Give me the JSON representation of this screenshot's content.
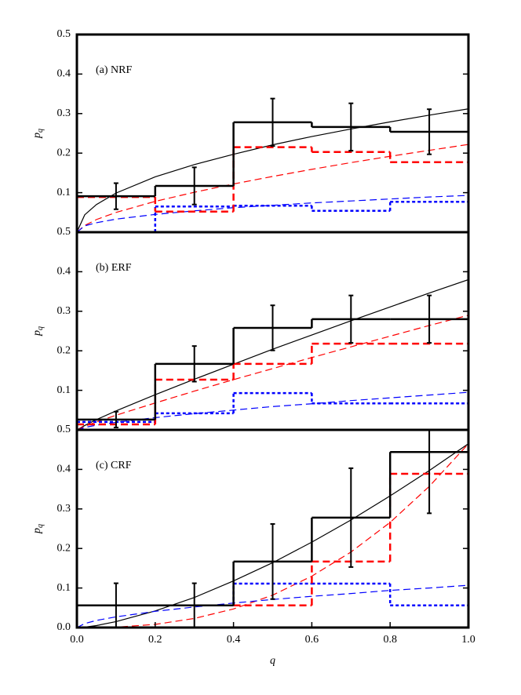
{
  "chart_data": [
    {
      "type": "histogram",
      "label": "(a) NRF",
      "ylabel": "p",
      "ylabel_subscript": "q",
      "xlim": [
        0,
        1
      ],
      "ylim": [
        0,
        0.5
      ],
      "yticks": [
        0.1,
        0.2,
        0.3,
        0.4,
        0.5
      ],
      "bins": [
        0,
        0.2,
        0.4,
        0.6,
        0.8,
        1
      ],
      "histograms": [
        {
          "color": "#000000",
          "dash": "solid",
          "values": [
            0.091,
            0.117,
            0.278,
            0.266,
            0.254
          ],
          "errors": [
            0.033,
            0.047,
            0.06,
            0.06,
            0.057
          ]
        },
        {
          "color": "#ff0000",
          "dash": "dashed",
          "values": [
            0.089,
            0.052,
            0.215,
            0.203,
            0.177
          ]
        },
        {
          "color": "#0000ff",
          "dash": "dotted",
          "values": [
            0,
            0.065,
            0.067,
            0.054,
            0.077
          ]
        }
      ],
      "curves": [
        {
          "color": "#000000",
          "dash": "solid",
          "x": [
            0,
            0.02,
            0.05,
            0.1,
            0.2,
            0.3,
            0.4,
            0.5,
            0.6,
            0.7,
            0.8,
            0.9,
            1
          ],
          "values": [
            0,
            0.044,
            0.07,
            0.099,
            0.14,
            0.171,
            0.197,
            0.221,
            0.242,
            0.261,
            0.279,
            0.296,
            0.312
          ]
        },
        {
          "color": "#ff0000",
          "dash": "dashed",
          "x": [
            0,
            0.02,
            0.05,
            0.1,
            0.2,
            0.3,
            0.4,
            0.5,
            0.6,
            0.7,
            0.8,
            0.9,
            1
          ],
          "values": [
            0,
            0.017,
            0.032,
            0.05,
            0.078,
            0.101,
            0.122,
            0.141,
            0.159,
            0.176,
            0.192,
            0.207,
            0.222
          ]
        },
        {
          "color": "#0000ff",
          "dash": "dashed",
          "x": [
            0,
            0.02,
            0.05,
            0.1,
            0.2,
            0.3,
            0.4,
            0.5,
            0.6,
            0.7,
            0.8,
            0.9,
            1
          ],
          "values": [
            0,
            0.016,
            0.024,
            0.033,
            0.045,
            0.054,
            0.062,
            0.068,
            0.074,
            0.079,
            0.084,
            0.089,
            0.093
          ]
        }
      ]
    },
    {
      "type": "histogram",
      "label": "(b) ERF",
      "ylabel": "p",
      "ylabel_subscript": "q",
      "xlim": [
        0,
        1
      ],
      "ylim": [
        0,
        0.5
      ],
      "yticks": [
        0.1,
        0.2,
        0.3,
        0.4,
        0.5
      ],
      "bins": [
        0,
        0.2,
        0.4,
        0.6,
        0.8,
        1
      ],
      "histograms": [
        {
          "color": "#000000",
          "dash": "solid",
          "values": [
            0.026,
            0.167,
            0.258,
            0.28,
            0.28
          ],
          "errors": [
            0.02,
            0.045,
            0.057,
            0.06,
            0.06
          ]
        },
        {
          "color": "#ff0000",
          "dash": "dashed",
          "values": [
            0.014,
            0.127,
            0.167,
            0.218,
            0.218
          ]
        },
        {
          "color": "#0000ff",
          "dash": "dotted",
          "values": [
            0.02,
            0.042,
            0.093,
            0.067,
            0.067
          ]
        }
      ],
      "curves": [
        {
          "color": "#000000",
          "dash": "solid",
          "x": [
            0,
            0.02,
            0.05,
            0.1,
            0.2,
            0.3,
            0.4,
            0.5,
            0.6,
            0.7,
            0.8,
            0.9,
            1
          ],
          "values": [
            0,
            0.011,
            0.026,
            0.048,
            0.089,
            0.128,
            0.166,
            0.204,
            0.24,
            0.276,
            0.311,
            0.346,
            0.38
          ]
        },
        {
          "color": "#ff0000",
          "dash": "dashed",
          "x": [
            0,
            0.02,
            0.05,
            0.1,
            0.2,
            0.3,
            0.4,
            0.5,
            0.6,
            0.7,
            0.8,
            0.9,
            1
          ],
          "values": [
            0,
            0.009,
            0.02,
            0.037,
            0.068,
            0.098,
            0.127,
            0.155,
            0.183,
            0.21,
            0.237,
            0.264,
            0.29
          ]
        },
        {
          "color": "#0000ff",
          "dash": "dashed",
          "x": [
            0,
            0.02,
            0.05,
            0.1,
            0.2,
            0.3,
            0.4,
            0.5,
            0.6,
            0.7,
            0.8,
            0.9,
            1
          ],
          "values": [
            0,
            0.006,
            0.012,
            0.019,
            0.031,
            0.041,
            0.05,
            0.059,
            0.066,
            0.074,
            0.081,
            0.088,
            0.095
          ]
        }
      ]
    },
    {
      "type": "histogram",
      "label": "(c) CRF",
      "ylabel": "p",
      "ylabel_subscript": "q",
      "xlabel": "q",
      "xlim": [
        0,
        1
      ],
      "xticks": [
        {
          "value": 0,
          "label": "0.0"
        },
        0.2,
        0.4,
        0.6,
        0.8,
        {
          "value": 1,
          "label": "1.0"
        }
      ],
      "ylim": [
        0,
        0.5
      ],
      "yticks": [
        {
          "value": 0,
          "label": "0.0"
        },
        0.1,
        0.2,
        0.3,
        0.4,
        0.5
      ],
      "bins": [
        0,
        0.2,
        0.4,
        0.6,
        0.8,
        1
      ],
      "histograms": [
        {
          "color": "#000000",
          "dash": "solid",
          "values": [
            0.056,
            0.056,
            0.167,
            0.278,
            0.444
          ],
          "errors": [
            0.056,
            0.056,
            0.095,
            0.125,
            0.155
          ]
        },
        {
          "color": "#ff0000",
          "dash": "dashed",
          "values": [
            0.056,
            0.056,
            0.056,
            0.167,
            0.389
          ]
        },
        {
          "color": "#0000ff",
          "dash": "dotted",
          "values": [
            0.056,
            0.056,
            0.111,
            0.111,
            0.056
          ]
        }
      ],
      "curves": [
        {
          "color": "#000000",
          "dash": "solid",
          "x": [
            0,
            0.02,
            0.05,
            0.1,
            0.2,
            0.3,
            0.4,
            0.5,
            0.6,
            0.7,
            0.8,
            0.9,
            1
          ],
          "values": [
            0,
            0.001,
            0.005,
            0.015,
            0.042,
            0.076,
            0.118,
            0.164,
            0.216,
            0.272,
            0.333,
            0.397,
            0.465
          ]
        },
        {
          "color": "#ff0000",
          "dash": "dashed",
          "x": [
            0,
            0.02,
            0.05,
            0.1,
            0.2,
            0.3,
            0.4,
            0.5,
            0.6,
            0.7,
            0.8,
            0.9,
            1
          ],
          "values": [
            0,
            0,
            0,
            0.001,
            0.008,
            0.023,
            0.047,
            0.082,
            0.13,
            0.191,
            0.266,
            0.357,
            0.465
          ]
        },
        {
          "color": "#0000ff",
          "dash": "dashed",
          "x": [
            0,
            0.02,
            0.05,
            0.1,
            0.2,
            0.3,
            0.4,
            0.5,
            0.6,
            0.7,
            0.8,
            0.9,
            1
          ],
          "values": [
            0,
            0.01,
            0.018,
            0.027,
            0.041,
            0.052,
            0.062,
            0.071,
            0.079,
            0.086,
            0.094,
            0.1,
            0.107
          ]
        }
      ]
    }
  ]
}
